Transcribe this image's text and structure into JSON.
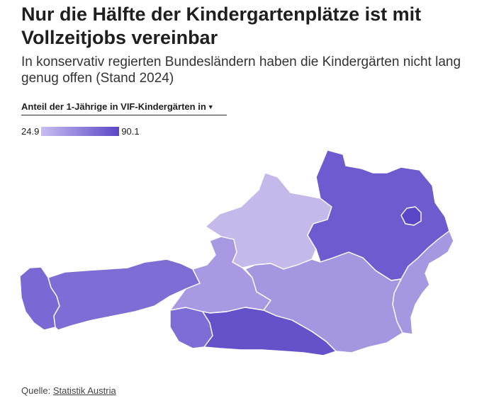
{
  "header": {
    "title": "Nur die Hälfte der Kindergartenplätze ist mit Vollzeitjobs vereinbar",
    "subtitle": "In konservativ regierten Bundesländern haben die Kindergärten nicht lang genug offen (Stand 2024)"
  },
  "selector": {
    "label": "Anteil der 1-Jährige in VIF-Kindergärten in",
    "icon": "dropdown-icon"
  },
  "legend": {
    "min_label": "24.9",
    "max_label": "90.1",
    "min_color": "#c9bdf0",
    "max_color": "#5a47c7"
  },
  "map_data": {
    "type": "choropleth",
    "regions": [
      {
        "name": "Vorarlberg",
        "color": "#7a68d4"
      },
      {
        "name": "Tirol",
        "color": "#7f6dd6"
      },
      {
        "name": "Osttirol",
        "color": "#7f6dd6"
      },
      {
        "name": "Salzburg",
        "color": "#a899e2"
      },
      {
        "name": "Oberösterreich",
        "color": "#c5b8ea"
      },
      {
        "name": "Niederösterreich",
        "color": "#6e5bcf"
      },
      {
        "name": "Wien",
        "color": "#5a47c7"
      },
      {
        "name": "Burgenland",
        "color": "#a697e1"
      },
      {
        "name": "Steiermark",
        "color": "#a596e0"
      },
      {
        "name": "Kärnten",
        "color": "#6552cb"
      }
    ]
  },
  "footer": {
    "source_label": "Quelle:",
    "source_link": "Statistik Austria"
  }
}
